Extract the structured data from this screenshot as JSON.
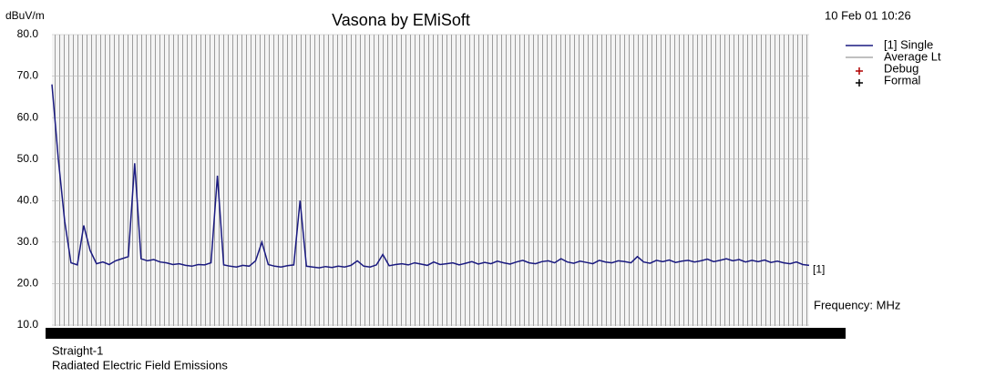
{
  "chart_data": {
    "type": "line",
    "title": "Vasona by EMiSoft",
    "timestamp": "10 Feb 01 10:26",
    "y_label": "dBuV/m",
    "x_label": "Frequency: MHz",
    "end_label": "[1]",
    "footer": [
      "Straight-1",
      "Radiated Electric Field Emissions"
    ],
    "ylim": [
      10,
      80
    ],
    "yticks": [
      {
        "value": 10,
        "label": "10.0"
      },
      {
        "value": 20,
        "label": "20.0"
      },
      {
        "value": 30,
        "label": "30.0"
      },
      {
        "value": 40,
        "label": "40.0"
      },
      {
        "value": 50,
        "label": "50.0"
      },
      {
        "value": 60,
        "label": "60.0"
      },
      {
        "value": 70,
        "label": "70.0"
      },
      {
        "value": 80,
        "label": "80.0"
      }
    ],
    "grid": true,
    "series": [
      {
        "name": "[1] Single",
        "color": "#1a1a80",
        "values": [
          68,
          50,
          35,
          25,
          24.5,
          34,
          28,
          24.8,
          25.2,
          24.6,
          25.5,
          26,
          26.5,
          49,
          26,
          25.5,
          25.8,
          25.2,
          25,
          24.6,
          24.8,
          24.4,
          24.2,
          24.6,
          24.5,
          25,
          46,
          24.5,
          24.2,
          24,
          24.4,
          24.2,
          25.5,
          30,
          24.6,
          24.2,
          24,
          24.3,
          24.5,
          40,
          24.2,
          24,
          23.8,
          24.1,
          23.9,
          24.2,
          24,
          24.4,
          25.5,
          24.2,
          24,
          24.5,
          27,
          24.3,
          24.6,
          24.8,
          24.5,
          25,
          24.7,
          24.4,
          25.2,
          24.6,
          24.8,
          25,
          24.5,
          24.9,
          25.3,
          24.7,
          25.1,
          24.8,
          25.4,
          25,
          24.7,
          25.2,
          25.6,
          25,
          24.8,
          25.3,
          25.5,
          25,
          26,
          25.2,
          24.9,
          25.4,
          25.1,
          24.8,
          25.6,
          25.2,
          25,
          25.5,
          25.3,
          25,
          26.5,
          25.2,
          24.9,
          25.6,
          25.3,
          25.7,
          25.1,
          25.4,
          25.6,
          25.2,
          25.5,
          25.9,
          25.3,
          25.6,
          26,
          25.5,
          25.8,
          25.2,
          25.6,
          25.3,
          25.7,
          25.1,
          25.4,
          25,
          24.8,
          25.2,
          24.6,
          24.4
        ]
      }
    ],
    "legend_items": [
      {
        "name": "Average Lt",
        "color": "#808080",
        "symbol": "line"
      },
      {
        "name": "Debug",
        "color": "#b00000",
        "symbol": "plus"
      },
      {
        "name": "Formal",
        "color": "#000000",
        "symbol": "plus"
      }
    ]
  }
}
